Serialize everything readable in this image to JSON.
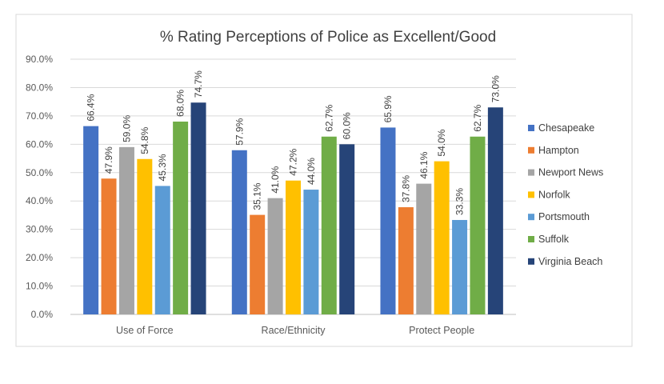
{
  "chart_data": {
    "type": "bar",
    "title": "% Rating Perceptions of Police as Excellent/Good",
    "categories": [
      "Use of Force",
      "Race/Ethnicity",
      "Protect People"
    ],
    "ylim": [
      0,
      90
    ],
    "yticks": [
      "0.0%",
      "10.0%",
      "20.0%",
      "30.0%",
      "40.0%",
      "50.0%",
      "60.0%",
      "70.0%",
      "80.0%",
      "90.0%"
    ],
    "grid": true,
    "legend": "right",
    "series": [
      {
        "name": "Chesapeake",
        "color": "#4472C4",
        "values": [
          66.4,
          57.9,
          65.9
        ],
        "labels": [
          "66.4%",
          "57.9%",
          "65.9%"
        ]
      },
      {
        "name": "Hampton",
        "color": "#ED7D31",
        "values": [
          47.9,
          35.1,
          37.8
        ],
        "labels": [
          "47.9%",
          "35.1%",
          "37.8%"
        ]
      },
      {
        "name": "Newport News",
        "color": "#A5A5A5",
        "values": [
          59.0,
          41.0,
          46.1
        ],
        "labels": [
          "59.0%",
          "41.0%",
          "46.1%"
        ]
      },
      {
        "name": "Norfolk",
        "color": "#FFC000",
        "values": [
          54.8,
          47.2,
          54.0
        ],
        "labels": [
          "54.8%",
          "47.2%",
          "54.0%"
        ]
      },
      {
        "name": "Portsmouth",
        "color": "#5B9BD5",
        "values": [
          45.3,
          44.0,
          33.3
        ],
        "labels": [
          "45.3%",
          "44.0%",
          "33.3%"
        ]
      },
      {
        "name": "Suffolk",
        "color": "#70AD47",
        "values": [
          68.0,
          62.7,
          62.7
        ],
        "labels": [
          "68.0%",
          "62.7%",
          "62.7%"
        ]
      },
      {
        "name": "Virginia Beach",
        "color": "#264478",
        "values": [
          74.7,
          60.0,
          73.0
        ],
        "labels": [
          "74.7%",
          "60.0%",
          "73.0%"
        ]
      }
    ]
  }
}
